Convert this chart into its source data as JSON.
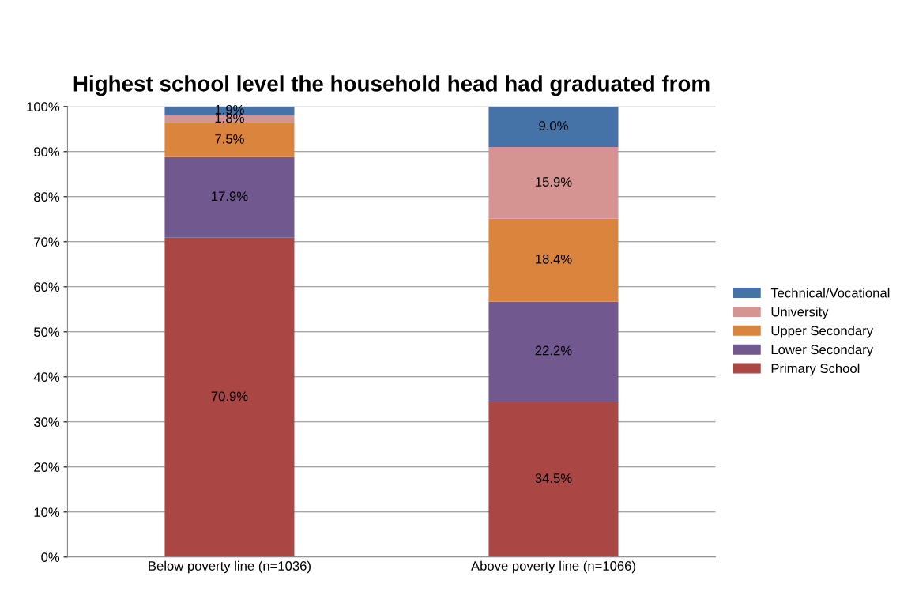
{
  "chart_data": {
    "type": "bar",
    "title": "Highest school level the household head had graduated from",
    "categories": [
      "Below poverty line (n=1036)",
      "Above poverty line (n=1066)"
    ],
    "stacked": true,
    "series": [
      {
        "name": "Primary School",
        "color": "#aa4643",
        "values": [
          70.9,
          34.5
        ],
        "value_labels": [
          "70.9%",
          "34.5%"
        ]
      },
      {
        "name": "Lower Secondary",
        "color": "#71588f",
        "values": [
          17.9,
          22.2
        ],
        "value_labels": [
          "17.9%",
          "22.2%"
        ]
      },
      {
        "name": "Upper Secondary",
        "color": "#db843d",
        "values": [
          7.5,
          18.4
        ],
        "value_labels": [
          "7.5%",
          "18.4%"
        ]
      },
      {
        "name": "University",
        "color": "#d59492",
        "values": [
          1.8,
          15.9
        ],
        "value_labels": [
          "1.8%",
          "15.9%"
        ]
      },
      {
        "name": "Technical/Vocational",
        "color": "#4572a7",
        "values": [
          1.9,
          9.0
        ],
        "value_labels": [
          "1.9%",
          "9.0%"
        ]
      }
    ],
    "ylim": [
      0,
      100
    ],
    "yticks": [
      {
        "value": 0,
        "label": "0%"
      },
      {
        "value": 10,
        "label": "10%"
      },
      {
        "value": 20,
        "label": "20%"
      },
      {
        "value": 30,
        "label": "30%"
      },
      {
        "value": 40,
        "label": "40%"
      },
      {
        "value": 50,
        "label": "50%"
      },
      {
        "value": 60,
        "label": "60%"
      },
      {
        "value": 70,
        "label": "70%"
      },
      {
        "value": 80,
        "label": "80%"
      },
      {
        "value": 90,
        "label": "90%"
      },
      {
        "value": 100,
        "label": "100%"
      }
    ],
    "grid": "y",
    "legend": "right"
  }
}
